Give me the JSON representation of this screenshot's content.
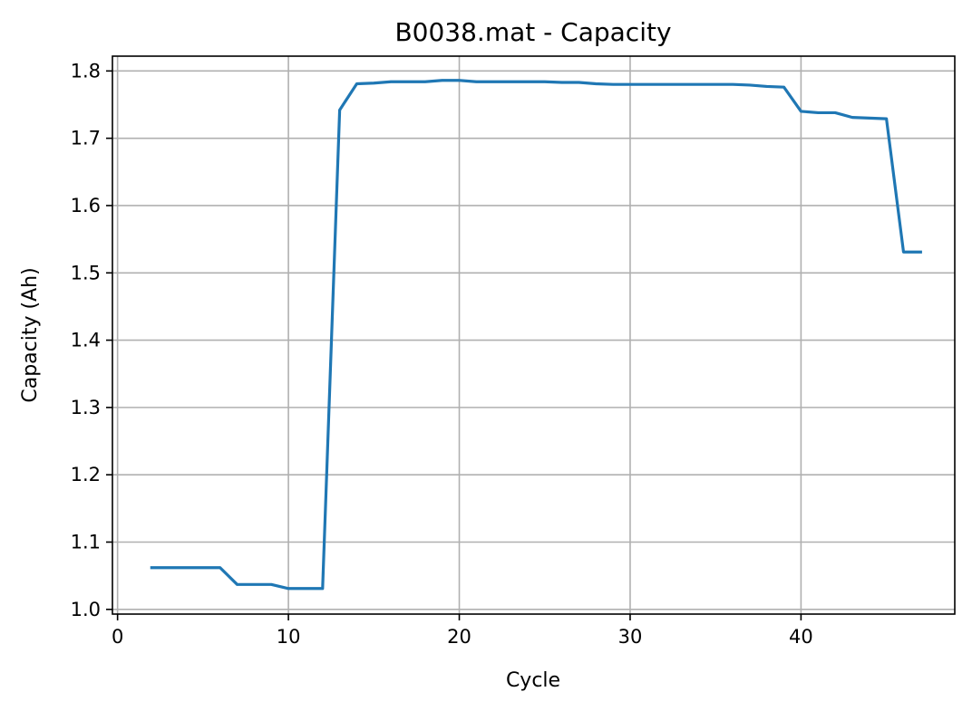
{
  "chart_data": {
    "type": "line",
    "title": "B0038.mat - Capacity",
    "xlabel": "Cycle",
    "ylabel": "Capacity (Ah)",
    "xlim": [
      -0.3,
      49
    ],
    "ylim": [
      0.993,
      1.822
    ],
    "xticks": [
      0,
      10,
      20,
      30,
      40
    ],
    "yticks": [
      1.0,
      1.1,
      1.2,
      1.3,
      1.4,
      1.5,
      1.6,
      1.7,
      1.8
    ],
    "grid": true,
    "line_color": "#1f77b4",
    "series": [
      {
        "x": [
          2,
          3,
          4,
          5,
          6,
          7,
          8,
          9,
          10,
          11,
          12,
          13,
          14,
          15,
          16,
          17,
          18,
          19,
          20,
          21,
          22,
          23,
          24,
          25,
          26,
          27,
          28,
          29,
          30,
          31,
          32,
          33,
          34,
          35,
          36,
          37,
          38,
          39,
          40,
          41,
          42,
          43,
          44,
          45,
          46,
          47
        ],
        "values": [
          1.062,
          1.062,
          1.062,
          1.062,
          1.062,
          1.037,
          1.037,
          1.037,
          1.031,
          1.031,
          1.031,
          1.742,
          1.781,
          1.782,
          1.784,
          1.784,
          1.784,
          1.786,
          1.786,
          1.784,
          1.784,
          1.784,
          1.784,
          1.784,
          1.783,
          1.783,
          1.781,
          1.78,
          1.78,
          1.78,
          1.78,
          1.78,
          1.78,
          1.78,
          1.78,
          1.779,
          1.777,
          1.776,
          1.74,
          1.738,
          1.738,
          1.731,
          1.73,
          1.729,
          1.531,
          1.531
        ]
      }
    ]
  }
}
